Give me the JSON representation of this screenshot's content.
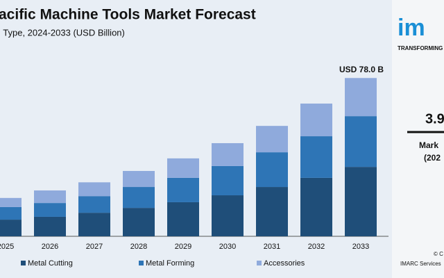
{
  "chart_data": {
    "type": "stacked_bar",
    "title": "acific Machine Tools Market Forecast",
    "subtitle": "l Type, 2024-2033 (USD Billion)",
    "annotation": "USD 78.0 B",
    "categories": [
      "2025",
      "2026",
      "2027",
      "2028",
      "2029",
      "2030",
      "2031",
      "2032",
      "2033"
    ],
    "series": [
      {
        "name": "Metal Cutting",
        "color": "#1f4e79",
        "values": [
          8.2,
          9.6,
          11.6,
          14.0,
          16.8,
          20.2,
          24.3,
          28.8,
          34.2
        ]
      },
      {
        "name": "Metal Forming",
        "color": "#2e75b6",
        "values": [
          6.2,
          6.8,
          8.2,
          10.3,
          12.0,
          14.4,
          17.1,
          20.5,
          25.0
        ]
      },
      {
        "name": "Accessories",
        "color": "#8faadc",
        "values": [
          4.5,
          6.2,
          6.8,
          7.9,
          9.6,
          11.3,
          13.0,
          16.1,
          18.8
        ]
      }
    ],
    "ylim": [
      0,
      80
    ]
  },
  "side_panel": {
    "logo": "im",
    "tagline": "TRANSFORMING",
    "stat": "3.9",
    "stat_label_1": "Mark",
    "stat_label_2": "(202",
    "copyright": "© C",
    "source": "IMARC Services"
  }
}
